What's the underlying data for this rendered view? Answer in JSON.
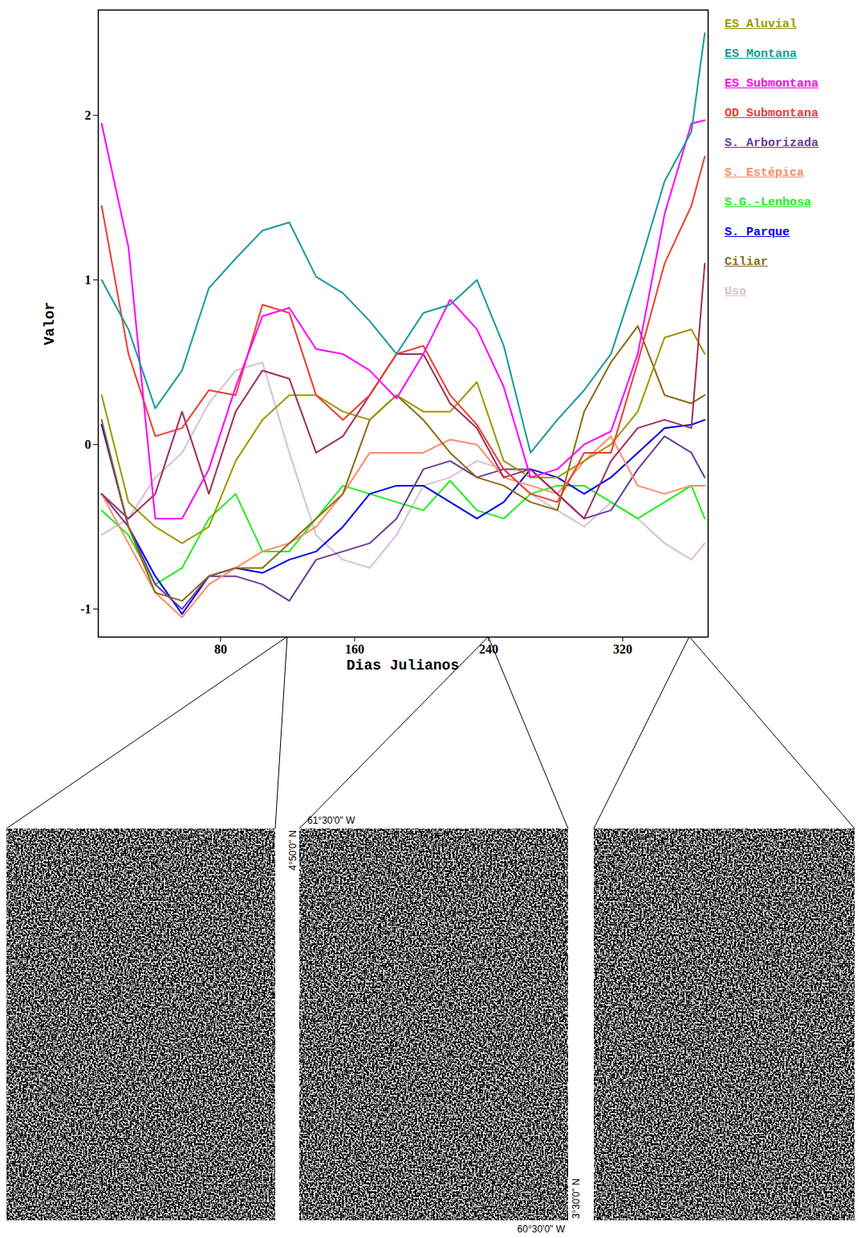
{
  "chart_data": {
    "type": "line",
    "x_label": "Dias Julianos",
    "y_label": "Valor",
    "xlim": [
      7,
      371
    ],
    "ylim": [
      -1.17,
      2.64
    ],
    "xticks": [
      80,
      160,
      240,
      320
    ],
    "yticks": [
      -1,
      0,
      1,
      2
    ],
    "legend": "right",
    "x": [
      9,
      25,
      41,
      57,
      73,
      89,
      105,
      121,
      137,
      153,
      169,
      185,
      201,
      217,
      233,
      249,
      265,
      281,
      297,
      313,
      329,
      345,
      361,
      369
    ],
    "series": [
      {
        "name": "Uso",
        "color": "#d8bfd8",
        "values": [
          -0.55,
          -0.45,
          -0.2,
          -0.05,
          0.25,
          0.45,
          0.5,
          -0.05,
          -0.55,
          -0.7,
          -0.75,
          -0.55,
          -0.25,
          -0.2,
          -0.1,
          -0.15,
          -0.3,
          -0.4,
          -0.5,
          -0.35,
          -0.45,
          -0.6,
          -0.7,
          -0.6
        ]
      },
      {
        "name": "S.G.-Lenhosa",
        "color": "#22ee22",
        "values": [
          -0.4,
          -0.55,
          -0.85,
          -0.75,
          -0.45,
          -0.3,
          -0.65,
          -0.65,
          -0.45,
          -0.25,
          -0.3,
          -0.35,
          -0.4,
          -0.22,
          -0.4,
          -0.45,
          -0.3,
          -0.25,
          -0.25,
          -0.35,
          -0.45,
          -0.35,
          -0.25,
          -0.45
        ]
      },
      {
        "name": "S. Parque",
        "color": "#0000ee",
        "values": [
          0.12,
          -0.5,
          -0.8,
          -1.03,
          -0.8,
          -0.75,
          -0.78,
          -0.7,
          -0.65,
          -0.5,
          -0.3,
          -0.25,
          -0.25,
          -0.35,
          -0.45,
          -0.35,
          -0.15,
          -0.2,
          -0.3,
          -0.2,
          -0.05,
          0.1,
          0.12,
          0.15
        ]
      },
      {
        "name": "S. Arborizada",
        "color": "#6a3d9a",
        "values": [
          -0.3,
          -0.5,
          -0.85,
          -1.0,
          -0.8,
          -0.8,
          -0.85,
          -0.95,
          -0.7,
          -0.65,
          -0.6,
          -0.45,
          -0.15,
          -0.1,
          -0.2,
          -0.15,
          -0.15,
          -0.3,
          -0.45,
          -0.4,
          -0.15,
          0.05,
          -0.05,
          -0.2
        ]
      },
      {
        "name": "S. Estépica",
        "color": "#ff8c69",
        "values": [
          -0.3,
          -0.6,
          -0.9,
          -1.05,
          -0.85,
          -0.75,
          -0.65,
          -0.6,
          -0.5,
          -0.3,
          -0.05,
          -0.05,
          -0.05,
          0.03,
          0.0,
          -0.2,
          -0.25,
          -0.3,
          -0.1,
          0.05,
          -0.25,
          -0.3,
          -0.25,
          -0.25
        ]
      },
      {
        "name": "Ciliar",
        "color": "#8b6b14",
        "values": [
          0.15,
          -0.5,
          -0.9,
          -0.95,
          -0.8,
          -0.75,
          -0.75,
          -0.6,
          -0.45,
          -0.3,
          0.15,
          0.3,
          0.15,
          -0.05,
          -0.2,
          -0.25,
          -0.35,
          -0.4,
          0.2,
          0.5,
          0.72,
          0.3,
          0.25,
          0.3
        ]
      },
      {
        "name": "ES Aluvial",
        "color": "#9a9a00",
        "values": [
          0.3,
          -0.35,
          -0.5,
          -0.6,
          -0.5,
          -0.1,
          0.15,
          0.3,
          0.3,
          0.2,
          0.15,
          0.3,
          0.2,
          0.2,
          0.38,
          -0.1,
          -0.2,
          -0.2,
          -0.1,
          0.0,
          0.2,
          0.65,
          0.7,
          0.55
        ]
      },
      {
        "name": null,
        "color": "#a03060",
        "values": [
          -0.3,
          -0.45,
          -0.3,
          0.2,
          -0.3,
          0.2,
          0.45,
          0.4,
          -0.05,
          0.05,
          0.3,
          0.55,
          0.55,
          0.25,
          0.1,
          -0.2,
          -0.15,
          -0.3,
          -0.45,
          -0.1,
          0.1,
          0.15,
          0.1,
          1.1
        ]
      },
      {
        "name": "OD Submontana",
        "color": "#f03c30",
        "values": [
          1.45,
          0.55,
          0.05,
          0.1,
          0.33,
          0.3,
          0.85,
          0.8,
          0.3,
          0.15,
          0.3,
          0.55,
          0.6,
          0.3,
          0.12,
          -0.15,
          -0.3,
          -0.35,
          -0.05,
          -0.05,
          0.5,
          1.1,
          1.45,
          1.75
        ]
      },
      {
        "name": "ES Submontana",
        "color": "#ff00ff",
        "values": [
          1.95,
          1.2,
          -0.45,
          -0.45,
          -0.15,
          0.35,
          0.78,
          0.83,
          0.58,
          0.55,
          0.45,
          0.28,
          0.55,
          0.88,
          0.7,
          0.35,
          -0.2,
          -0.15,
          0.0,
          0.08,
          0.55,
          1.4,
          1.95,
          1.97
        ]
      },
      {
        "name": "ES Montana",
        "color": "#1a9a9a",
        "values": [
          1.0,
          0.7,
          0.22,
          0.45,
          0.95,
          1.13,
          1.3,
          1.35,
          1.02,
          0.92,
          0.75,
          0.55,
          0.8,
          0.85,
          1.0,
          0.6,
          -0.05,
          0.15,
          0.33,
          0.55,
          1.05,
          1.6,
          1.9,
          2.5
        ]
      }
    ]
  },
  "map_panels": [
    {
      "day": 120
    },
    {
      "day": 240,
      "labels": {
        "top_left": "61°30'0\" W",
        "left": "4°50'0\" N",
        "right": "3°30'0\" N",
        "bottom_right": "60°30'0\" W"
      }
    },
    {
      "day": 360
    }
  ]
}
